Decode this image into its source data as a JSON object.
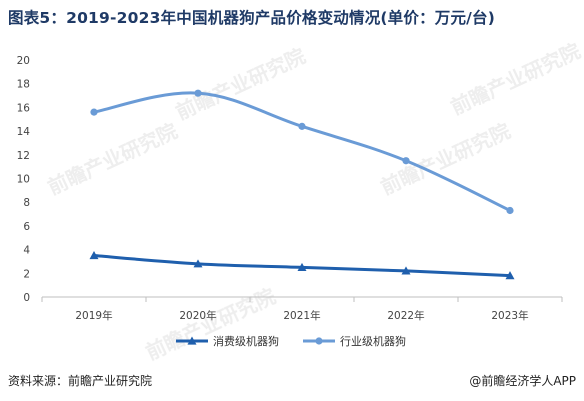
{
  "title": "图表5：2019-2023年中国机器狗产品价格变动情况(单价：万元/台)",
  "footer": {
    "source": "资料来源：前瞻产业研究院",
    "credit": "@前瞻经济学人APP"
  },
  "watermark": "前瞻产业研究院",
  "colors": {
    "consumer": "#1f5fad",
    "industry": "#6a9bd6",
    "title": "#1f3a66",
    "axis": "#bfbfbf"
  },
  "chart_data": {
    "type": "line",
    "categories": [
      "2019年",
      "2020年",
      "2021年",
      "2022年",
      "2023年"
    ],
    "series": [
      {
        "name": "消费级机器狗",
        "values": [
          3.5,
          2.8,
          2.5,
          2.2,
          1.8
        ],
        "marker": "triangle"
      },
      {
        "name": "行业级机器狗",
        "values": [
          15.6,
          17.2,
          14.4,
          11.5,
          7.3
        ],
        "marker": "circle"
      }
    ],
    "ylim": [
      0,
      20
    ],
    "yticks": [
      "0",
      "2",
      "4",
      "6",
      "8",
      "10",
      "12",
      "14",
      "16",
      "18",
      "20"
    ],
    "grid": false,
    "legend": "bottom"
  }
}
